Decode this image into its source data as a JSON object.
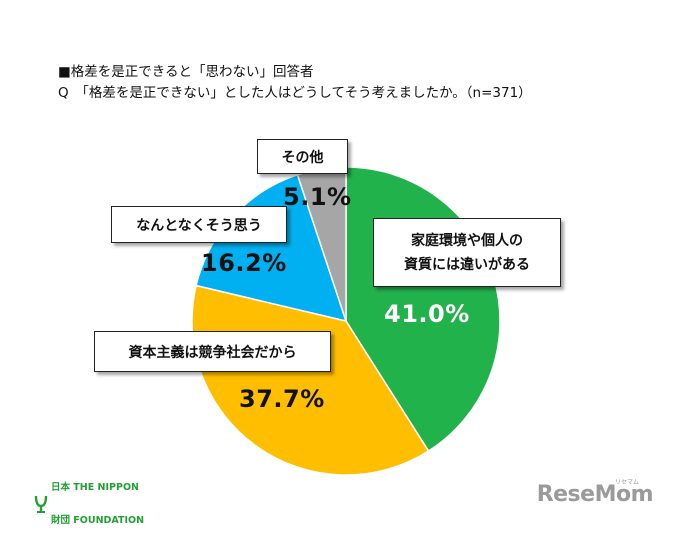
{
  "header": {
    "line1": "■格差を是正できると「思わない」回答者",
    "line2": "Q　「格差を是正できない」とした人はどうしてそう考えましたか。（n=371）"
  },
  "chart_data": {
    "type": "pie",
    "title": "格差を是正できると「思わない」回答者",
    "slices": [
      {
        "label": "家庭環境や個人の資質には違いがある",
        "label_lines": [
          "家庭環境や個人の",
          "資質には違いがある"
        ],
        "value": 41.0,
        "display": "41.0%",
        "color": "#22b24c"
      },
      {
        "label": "資本主義は競争社会だから",
        "label_lines": [
          "資本主義は競争社会だから"
        ],
        "value": 37.7,
        "display": "37.7%",
        "color": "#ffbf00"
      },
      {
        "label": "なんとなくそう思う",
        "label_lines": [
          "なんとなくそう思う"
        ],
        "value": 16.2,
        "display": "16.2%",
        "color": "#00b0f0"
      },
      {
        "label": "その他",
        "label_lines": [
          "その他"
        ],
        "value": 5.1,
        "display": "5.1%",
        "color": "#a6a6a6"
      }
    ]
  },
  "logo": {
    "line1": "日本 THE NIPPON",
    "line2": "財団 FOUNDATION",
    "color": "#22a035"
  },
  "watermark": {
    "text": "ReseMom",
    "small": "リセマム"
  }
}
